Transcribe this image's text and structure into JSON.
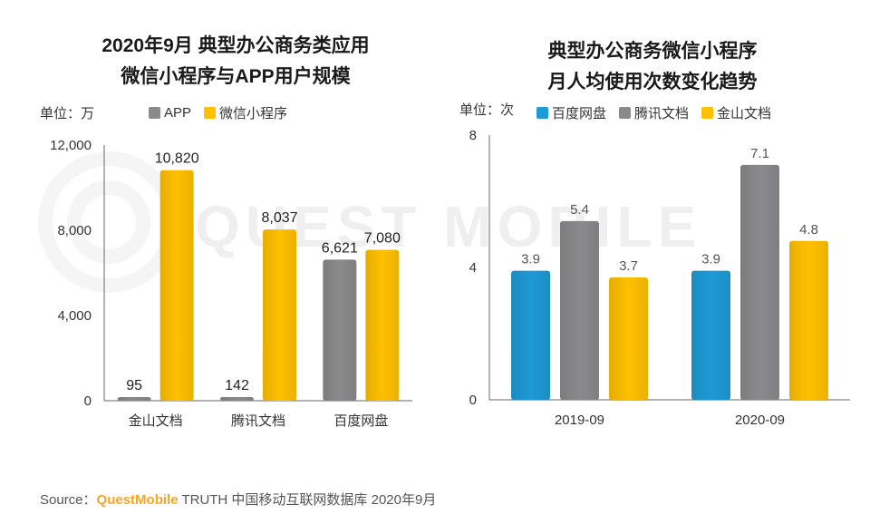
{
  "chart_data": [
    {
      "type": "bar",
      "title": "2020年9月 典型办公商务类应用",
      "subtitle": "微信小程序与APP用户规模",
      "unit": "单位：万",
      "categories": [
        "金山文档",
        "腾讯文档",
        "百度网盘"
      ],
      "series": [
        {
          "name": "APP",
          "values": [
            95,
            142,
            6621
          ],
          "labels": [
            "95",
            "142",
            "6,621"
          ]
        },
        {
          "name": "微信小程序",
          "values": [
            10820,
            8037,
            7080
          ],
          "labels": [
            "10,820",
            "8,037",
            "7,080"
          ]
        }
      ],
      "ylim": [
        0,
        12000
      ],
      "yticks": [
        0,
        4000,
        8000,
        12000
      ],
      "ytick_labels": [
        "0",
        "4,000",
        "8,000",
        "12,000"
      ],
      "grid": false,
      "legend": "top"
    },
    {
      "type": "bar",
      "title": "典型办公商务微信小程序",
      "subtitle": "月人均使用次数变化趋势",
      "unit": "单位：次",
      "categories": [
        "2019-09",
        "2020-09"
      ],
      "series": [
        {
          "name": "百度网盘",
          "values": [
            3.9,
            3.9
          ],
          "labels": [
            "3.9",
            "3.9"
          ]
        },
        {
          "name": "腾讯文档",
          "values": [
            5.4,
            7.1
          ],
          "labels": [
            "5.4",
            "7.1"
          ]
        },
        {
          "name": "金山文档",
          "values": [
            3.7,
            4.8
          ],
          "labels": [
            "3.7",
            "4.8"
          ]
        }
      ],
      "ylim": [
        0,
        8
      ],
      "yticks": [
        0,
        4,
        8
      ],
      "ytick_labels": [
        "0",
        "4",
        "8"
      ],
      "grid": false,
      "legend": "top"
    }
  ],
  "colors": {
    "app": "#8a8a8c",
    "miniprogram": "#ffc000",
    "baidu": "#1e9ad6",
    "tencent": "#8a8a8c",
    "kingsoft": "#ffc000"
  },
  "footer": {
    "prefix": "Source：",
    "brand": "QuestMobile",
    "rest": " TRUTH 中国移动互联网数据库 2020年9月"
  },
  "watermark": "QUEST MOBILE"
}
